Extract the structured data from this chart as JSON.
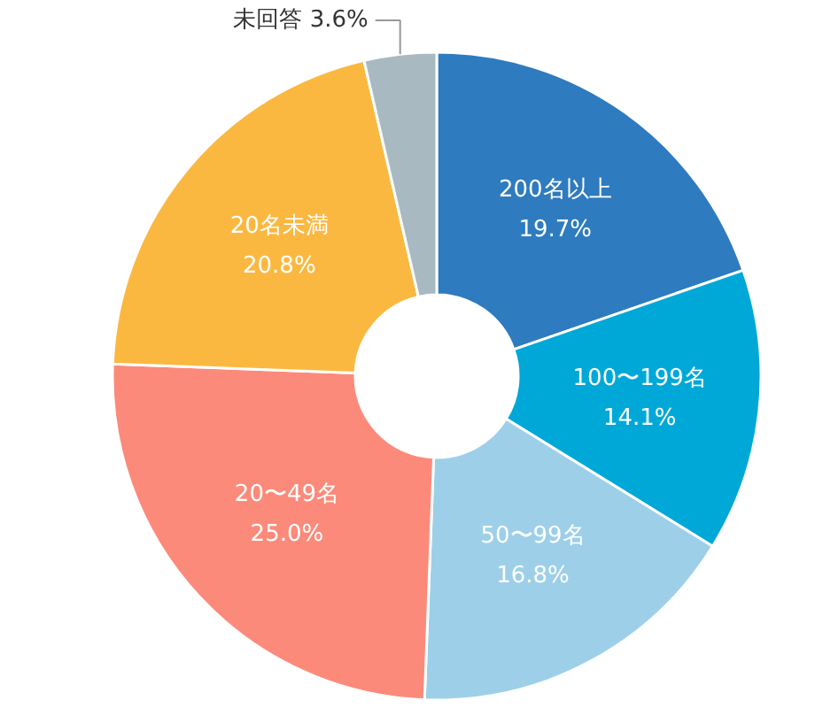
{
  "chart_data": {
    "type": "donut",
    "categories": [
      "200名以上",
      "100〜199名",
      "50〜99名",
      "20〜49名",
      "20名未満",
      "未回答"
    ],
    "values": [
      19.7,
      14.1,
      16.8,
      25.0,
      20.8,
      3.6
    ],
    "value_labels": [
      "19.7%",
      "14.1%",
      "16.8%",
      "25.0%",
      "20.8%",
      "3.6%"
    ],
    "colors": [
      "#2e7bbf",
      "#00a8d8",
      "#9dd0e8",
      "#fc8a7a",
      "#fbb840",
      "#a9b9c2"
    ]
  }
}
